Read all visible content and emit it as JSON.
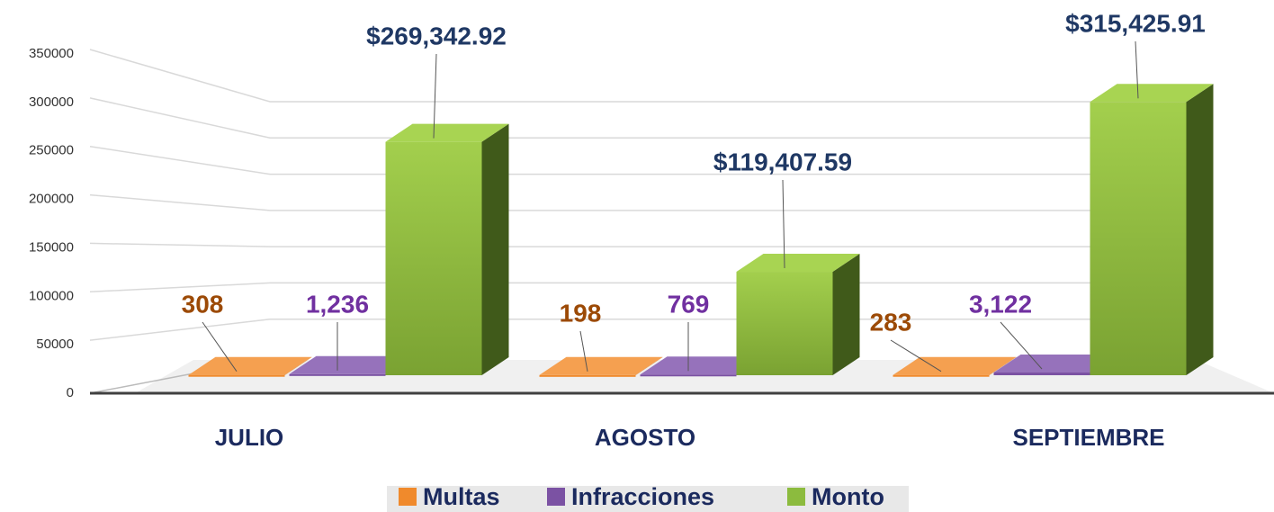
{
  "chart_data": {
    "type": "bar3d",
    "categories": [
      "JULIO",
      "AGOSTO",
      "SEPTIEMBRE"
    ],
    "series": [
      {
        "name": "Multas",
        "color": "#f08a2c",
        "values": [
          308,
          198,
          283
        ]
      },
      {
        "name": "Infracciones",
        "color": "#7b52a3",
        "values": [
          1236,
          769,
          3122
        ],
        "value_labels": [
          "1,236",
          "769",
          "3,122"
        ]
      },
      {
        "name": "Monto",
        "color": "#8cbb3e",
        "values": [
          269342.92,
          119407.59,
          315425.91
        ],
        "value_labels": [
          "$269,342.92",
          "$119,407.59",
          "$315,425.91"
        ]
      }
    ],
    "ylim": [
      0,
      350000
    ],
    "yticks": [
      0,
      50000,
      100000,
      150000,
      200000,
      250000,
      300000,
      350000
    ],
    "grid": true,
    "legend": "bottom"
  }
}
